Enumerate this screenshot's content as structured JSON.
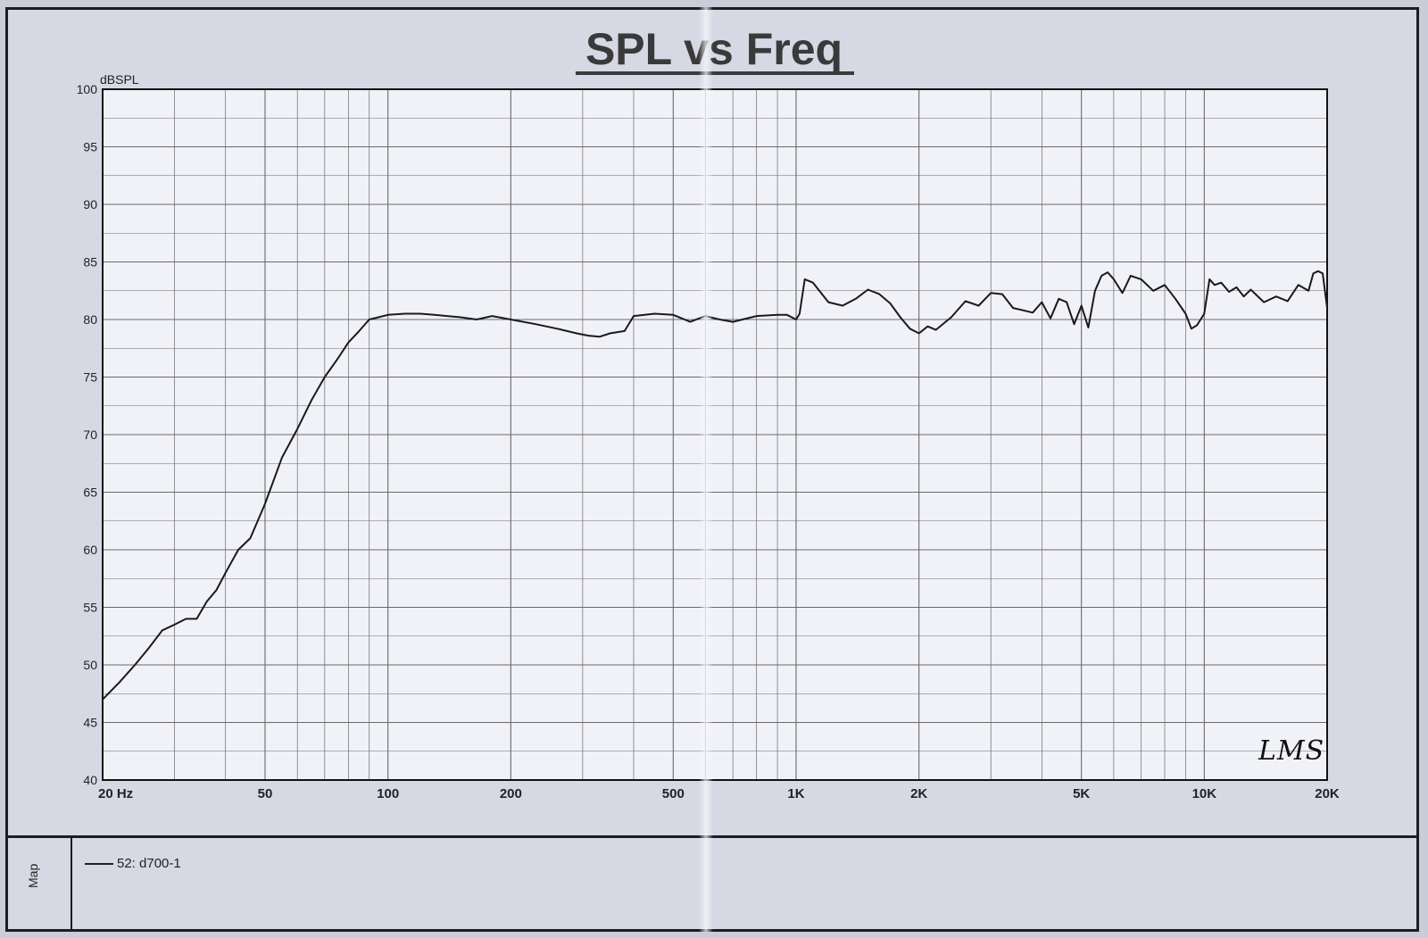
{
  "chart_data": {
    "type": "line",
    "title": "SPL vs Freq",
    "ylabel": "dBSPL",
    "xscale": "log",
    "xlim": [
      20,
      20000
    ],
    "ylim": [
      40,
      100
    ],
    "yticks": [
      "40",
      "45",
      "50",
      "55",
      "60",
      "65",
      "70",
      "75",
      "80",
      "85",
      "90",
      "95",
      "100"
    ],
    "yticks_values": [
      40,
      45,
      50,
      55,
      60,
      65,
      70,
      75,
      80,
      85,
      90,
      95,
      100
    ],
    "xticks": [
      "20 Hz",
      "50",
      "100",
      "200",
      "500",
      "1K",
      "2K",
      "5K",
      "10K",
      "20K"
    ],
    "xticks_values": [
      20,
      50,
      100,
      200,
      500,
      1000,
      2000,
      5000,
      10000,
      20000
    ],
    "grid": true,
    "series": [
      {
        "name": "52: d700-1",
        "color": "#1a1a1a",
        "x": [
          20,
          22,
          24,
          26,
          28,
          30,
          32,
          34,
          36,
          38,
          40,
          43,
          46,
          50,
          55,
          60,
          65,
          70,
          75,
          80,
          85,
          90,
          95,
          100,
          110,
          120,
          130,
          150,
          165,
          180,
          200,
          230,
          260,
          290,
          310,
          330,
          350,
          380,
          400,
          450,
          500,
          550,
          600,
          650,
          700,
          800,
          900,
          950,
          1000,
          1020,
          1050,
          1100,
          1200,
          1300,
          1400,
          1500,
          1600,
          1700,
          1800,
          1900,
          2000,
          2100,
          2200,
          2400,
          2600,
          2800,
          3000,
          3200,
          3400,
          3600,
          3800,
          4000,
          4200,
          4400,
          4600,
          4800,
          5000,
          5200,
          5400,
          5600,
          5800,
          6000,
          6300,
          6600,
          7000,
          7500,
          8000,
          8500,
          9000,
          9300,
          9600,
          10000,
          10300,
          10600,
          11000,
          11500,
          12000,
          12500,
          13000,
          14000,
          15000,
          16000,
          17000,
          18000,
          18500,
          19000,
          19500,
          20000
        ],
        "y": [
          47,
          48.5,
          50,
          51.5,
          53,
          53.5,
          54,
          54,
          55.5,
          56.5,
          58,
          60,
          61,
          64,
          68,
          70.5,
          73,
          75,
          76.5,
          78,
          79,
          80,
          80.2,
          80.4,
          80.5,
          80.5,
          80.4,
          80.2,
          80,
          80.3,
          80,
          79.6,
          79.2,
          78.8,
          78.6,
          78.5,
          78.8,
          79,
          80.3,
          80.5,
          80.4,
          79.8,
          80.3,
          80,
          79.8,
          80.3,
          80.4,
          80.4,
          80,
          80.5,
          83.5,
          83.2,
          81.5,
          81.2,
          81.8,
          82.6,
          82.2,
          81.4,
          80.2,
          79.2,
          78.8,
          79.4,
          79.1,
          80.2,
          81.6,
          81.2,
          82.3,
          82.2,
          81,
          80.8,
          80.6,
          81.5,
          80.1,
          81.8,
          81.5,
          79.6,
          81.2,
          79.3,
          82.5,
          83.8,
          84.1,
          83.5,
          82.3,
          83.8,
          83.5,
          82.5,
          83,
          81.8,
          80.5,
          79.2,
          79.5,
          80.5,
          83.5,
          83,
          83.2,
          82.4,
          82.8,
          82,
          82.6,
          81.5,
          82,
          81.6,
          83,
          82.5,
          84,
          84.2,
          84,
          81
        ]
      }
    ]
  },
  "legend": {
    "side_label": "Map",
    "entry": "52: d700-1"
  },
  "signature": "LMS",
  "colors": {
    "background": "#d6d9e4",
    "plot_bg": "#f1f2f8",
    "grid": "#6a6a6a",
    "line": "#1a1a1a"
  }
}
